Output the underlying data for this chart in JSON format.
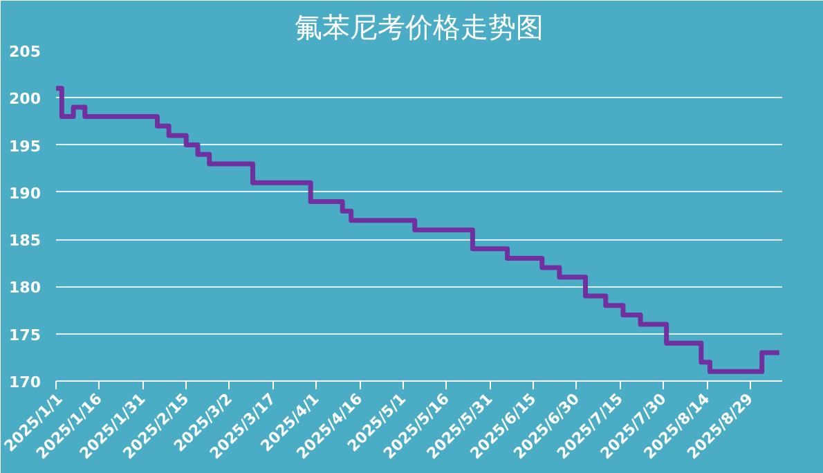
{
  "chart_data": {
    "type": "step",
    "title": "氟苯尼考价格走势图",
    "x": [
      "2025-01-01",
      "2025-01-03",
      "2025-01-07",
      "2025-01-11",
      "2025-02-05",
      "2025-02-09",
      "2025-02-15",
      "2025-02-19",
      "2025-02-23",
      "2025-03-10",
      "2025-03-30",
      "2025-04-10",
      "2025-04-13",
      "2025-05-05",
      "2025-05-25",
      "2025-06-06",
      "2025-06-18",
      "2025-06-24",
      "2025-07-03",
      "2025-07-10",
      "2025-07-16",
      "2025-07-22",
      "2025-07-31",
      "2025-08-12",
      "2025-08-15",
      "2025-09-02",
      "2025-09-08"
    ],
    "series": [
      {
        "color": "#7030a0",
        "values": [
          201,
          198,
          199,
          198,
          197,
          196,
          195,
          194,
          193,
          191,
          189,
          188,
          187,
          186,
          184,
          183,
          182,
          181,
          179,
          178,
          177,
          176,
          174,
          172,
          171,
          173,
          173
        ]
      }
    ],
    "xlim": [
      "2025-01-01",
      "2025-09-09"
    ],
    "xticks": [
      {
        "value": "2025-01-01",
        "label": "2025/1/1"
      },
      {
        "value": "2025-01-16",
        "label": "2025/1/16"
      },
      {
        "value": "2025-01-31",
        "label": "2025/1/31"
      },
      {
        "value": "2025-02-15",
        "label": "2025/2/15"
      },
      {
        "value": "2025-03-02",
        "label": "2025/3/2"
      },
      {
        "value": "2025-03-17",
        "label": "2025/3/17"
      },
      {
        "value": "2025-04-01",
        "label": "2025/4/1"
      },
      {
        "value": "2025-04-16",
        "label": "2025/4/16"
      },
      {
        "value": "2025-05-01",
        "label": "2025/5/1"
      },
      {
        "value": "2025-05-16",
        "label": "2025/5/16"
      },
      {
        "value": "2025-05-31",
        "label": "2025/5/31"
      },
      {
        "value": "2025-06-15",
        "label": "2025/6/15"
      },
      {
        "value": "2025-06-30",
        "label": "2025/6/30"
      },
      {
        "value": "2025-07-15",
        "label": "2025/7/15"
      },
      {
        "value": "2025-07-30",
        "label": "2025/7/30"
      },
      {
        "value": "2025-08-14",
        "label": "2025/8/14"
      },
      {
        "value": "2025-08-29",
        "label": "2025/8/29"
      }
    ],
    "ylim": [
      170,
      205
    ],
    "yticks": [
      170,
      175,
      180,
      185,
      190,
      195,
      200,
      205
    ],
    "grid": "y",
    "line_style": "solid"
  }
}
